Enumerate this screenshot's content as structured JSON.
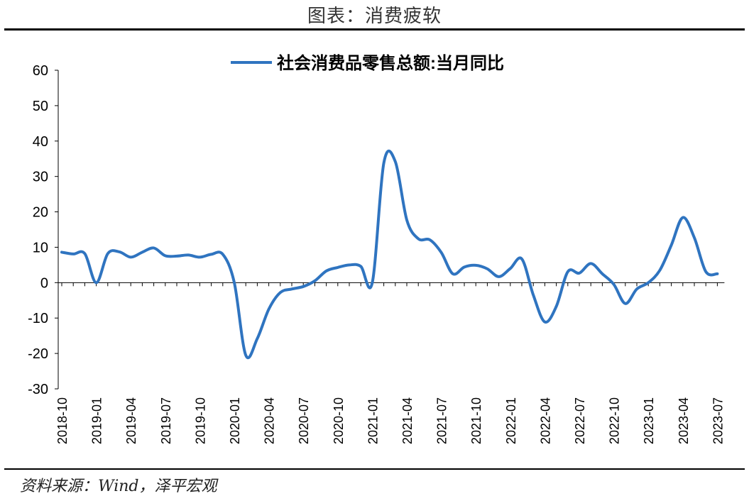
{
  "page": {
    "title": "图表：消费疲软",
    "source": "资料来源：Wind，泽平宏观"
  },
  "colors": {
    "series": "#2F74C0",
    "axis": "#000000",
    "background": "#FFFFFF"
  },
  "chart_data": {
    "type": "line",
    "title": "",
    "xlabel": "",
    "ylabel": "",
    "ylim": [
      -30,
      60
    ],
    "yticks": [
      60,
      50,
      40,
      30,
      20,
      10,
      0,
      -10,
      -20,
      -30
    ],
    "xticks": [
      "2018-10",
      "2019-01",
      "2019-04",
      "2019-07",
      "2019-10",
      "2020-01",
      "2020-04",
      "2020-07",
      "2020-10",
      "2021-01",
      "2021-04",
      "2021-07",
      "2021-10",
      "2022-01",
      "2022-04",
      "2022-07",
      "2022-10",
      "2023-01",
      "2023-04",
      "2023-07"
    ],
    "grid": false,
    "legend": "top-center",
    "x": [
      "2018-10",
      "2018-11",
      "2018-12",
      "2019-01",
      "2019-02",
      "2019-03",
      "2019-04",
      "2019-05",
      "2019-06",
      "2019-07",
      "2019-08",
      "2019-09",
      "2019-10",
      "2019-11",
      "2019-12",
      "2020-01",
      "2020-02",
      "2020-03",
      "2020-04",
      "2020-05",
      "2020-06",
      "2020-07",
      "2020-08",
      "2020-09",
      "2020-10",
      "2020-11",
      "2020-12",
      "2021-01",
      "2021-02",
      "2021-03",
      "2021-04",
      "2021-05",
      "2021-06",
      "2021-07",
      "2021-08",
      "2021-09",
      "2021-10",
      "2021-11",
      "2021-12",
      "2022-01",
      "2022-02",
      "2022-03",
      "2022-04",
      "2022-05",
      "2022-06",
      "2022-07",
      "2022-08",
      "2022-09",
      "2022-10",
      "2022-11",
      "2022-12",
      "2023-01",
      "2023-02",
      "2023-03",
      "2023-04",
      "2023-05",
      "2023-06",
      "2023-07"
    ],
    "series": [
      {
        "name": "社会消费品零售总额:当月同比",
        "values": [
          8.6,
          8.1,
          8.2,
          0,
          8.2,
          8.7,
          7.2,
          8.6,
          9.8,
          7.6,
          7.5,
          7.8,
          7.2,
          8.0,
          8.0,
          0,
          -20.5,
          -15.8,
          -7.5,
          -2.8,
          -1.8,
          -1.1,
          0.5,
          3.3,
          4.3,
          5.0,
          4.6,
          0,
          33.8,
          34.2,
          17.7,
          12.4,
          12.1,
          8.5,
          2.5,
          4.4,
          4.9,
          3.9,
          1.7,
          4.0,
          6.7,
          -3.5,
          -11.1,
          -6.7,
          3.1,
          2.7,
          5.4,
          2.5,
          -0.5,
          -5.9,
          -1.8,
          0,
          3.5,
          10.6,
          18.4,
          12.7,
          3.1,
          2.5
        ]
      }
    ]
  }
}
